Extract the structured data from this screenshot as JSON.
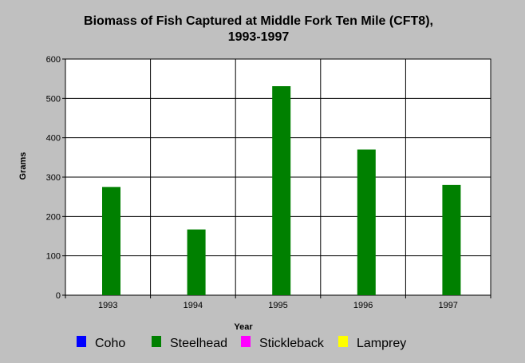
{
  "chart_data": {
    "type": "bar",
    "title_line1": "Biomass of Fish Captured at Middle Fork Ten Mile (CFT8),",
    "title_line2": "1993-1997",
    "xlabel": "Year",
    "ylabel": "Grams",
    "categories": [
      "1993",
      "1994",
      "1995",
      "1996",
      "1997"
    ],
    "ylim": [
      0,
      600
    ],
    "yticks": [
      0,
      100,
      200,
      300,
      400,
      500,
      600
    ],
    "grid": true,
    "legend_position": "bottom",
    "series": [
      {
        "name": "Coho",
        "color": "#0000ff",
        "values": [
          0,
          0,
          0,
          0,
          0
        ]
      },
      {
        "name": "Steelhead",
        "color": "#008000",
        "values": [
          275,
          167,
          531,
          370,
          280
        ]
      },
      {
        "name": "Stickleback",
        "color": "#ff00ff",
        "values": [
          0,
          0,
          0,
          0,
          0
        ]
      },
      {
        "name": "Lamprey",
        "color": "#ffff00",
        "values": [
          0,
          0,
          0,
          0,
          0
        ]
      }
    ]
  }
}
